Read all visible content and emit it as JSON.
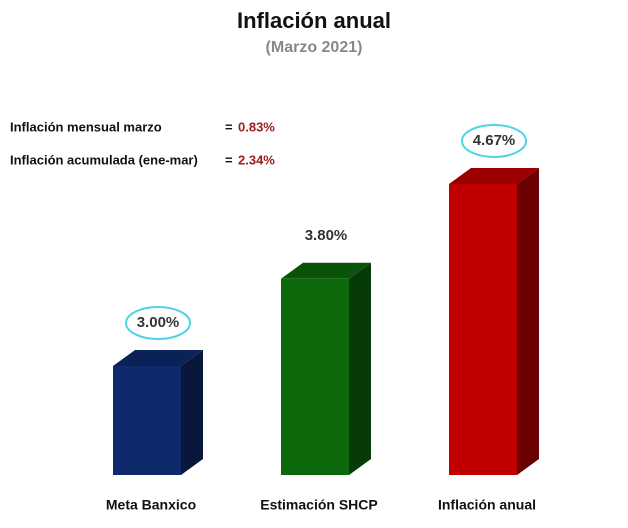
{
  "chart_data": {
    "type": "bar3d",
    "title": "Inflación anual",
    "subtitle": "(Marzo 2021)",
    "categories": [
      "Meta Banxico",
      "Estimación SHCP",
      "Inflación anual"
    ],
    "values": [
      3.0,
      3.8,
      4.67
    ],
    "value_labels": [
      "3.00%",
      "3.80%",
      "4.67%"
    ],
    "colors": [
      "#0e2a6c",
      "#0b690b",
      "#c00000"
    ],
    "highlight": [
      true,
      false,
      true
    ],
    "highlight_color": "#4fd3e6",
    "ylim": [
      2,
      5
    ],
    "annotations": [
      {
        "label": "Inflación mensual marzo",
        "equals": "=",
        "value": "0.83%"
      },
      {
        "label": "Inflación acumulada (ene-mar)",
        "equals": "=",
        "value": "2.34%"
      }
    ],
    "annotation_value_color": "#9b1c1c"
  }
}
